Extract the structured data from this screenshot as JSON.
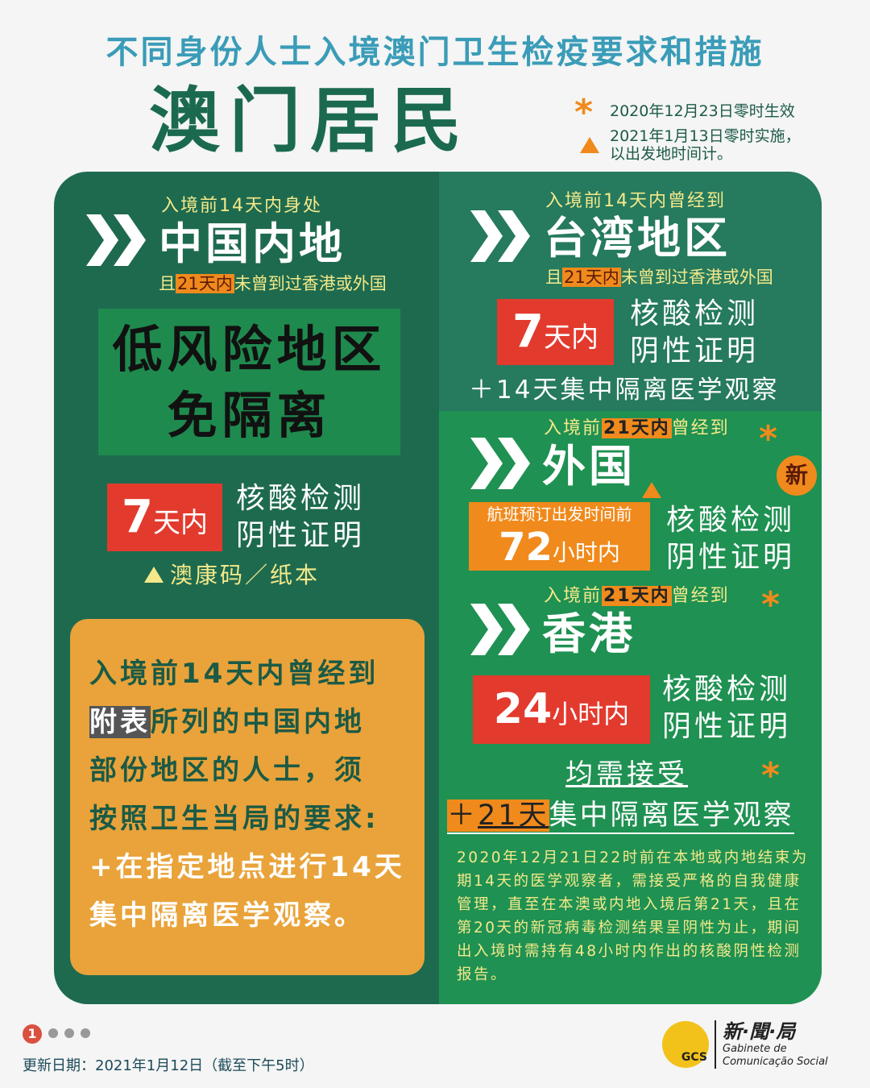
{
  "header": {
    "title": "不同身份人士入境澳门卫生检疫要求和措施",
    "subtitle": "澳门居民",
    "legend": [
      {
        "icon": "asterisk-icon",
        "text": "2020年12月23日零时生效"
      },
      {
        "icon": "triangle-icon",
        "text": "2021年1月13日零时实施，",
        "text2": "以出发地时间计。"
      }
    ]
  },
  "colors": {
    "left_panel": "#1e6a4f",
    "right_top": "#267a5e",
    "right_bottom": "#1f9152",
    "accent_orange": "#f08a1c",
    "red": "#e33a2e",
    "yellow_text": "#f4e98a"
  },
  "mainland": {
    "pre": "入境前14天内身处",
    "region": "中国内地",
    "cond_a": "且",
    "cond_hl": "21天内",
    "cond_b": "未曾到过香港或外国",
    "box_line1": "低风险地区",
    "box_line2": "免隔离",
    "test_days": "7",
    "test_unit": "天内",
    "test_l1": "核酸检测",
    "test_l2": "阴性证明",
    "code": "澳康码／纸本"
  },
  "special": {
    "l1": "入境前14天内曾经到",
    "hl": "附表",
    "l2": "所列的中国内地",
    "l3": "部份地区的人士，须",
    "l4": "按照卫生当局的要求:",
    "l5": "+在指定地点进行14天",
    "l6": "集中隔离医学观察。"
  },
  "taiwan": {
    "pre": "入境前14天内曾经到",
    "region": "台湾地区",
    "cond_a": "且",
    "cond_hl": "21天内",
    "cond_b": "未曾到过香港或外国",
    "test_days": "7",
    "test_unit": "天内",
    "test_l1": "核酸检测",
    "test_l2": "阴性证明",
    "quarantine": "＋14天集中隔离医学观察"
  },
  "foreign": {
    "pre_a": "入境前",
    "pre_hl": "21天内",
    "pre_b": "曾经到",
    "region": "外国",
    "new_badge": "新",
    "flight": "航班预订出发时间前",
    "hours": "72",
    "hours_unit": "小时内",
    "test_l1": "核酸检测",
    "test_l2": "阴性证明"
  },
  "hongkong": {
    "pre_a": "入境前",
    "pre_hl": "21天内",
    "pre_b": "曾经到",
    "region": "香港",
    "hours": "24",
    "hours_unit": "小时内",
    "test_l1": "核酸检测",
    "test_l2": "阴性证明"
  },
  "common": {
    "heading": "均需接受",
    "plus": "＋",
    "days": "21天",
    "text": "集中隔离医学观察",
    "note": "2020年12月21日22时前在本地或内地结束为期14天的医学观察者，需接受严格的自我健康管理，直至在本澳或内地入境后第21天，且在第20天的新冠病毒检测结果呈阴性为止，期间出入境时需持有48小时内作出的核酸阴性检测报告。"
  },
  "footer": {
    "page": "1",
    "update": "更新日期：2021年1月12日（截至下午5时）",
    "logo_cn": "新·聞·局",
    "logo_pt1": "Gabinete de",
    "logo_pt2": "Comunicação Social",
    "logo_mark": "GCS"
  }
}
